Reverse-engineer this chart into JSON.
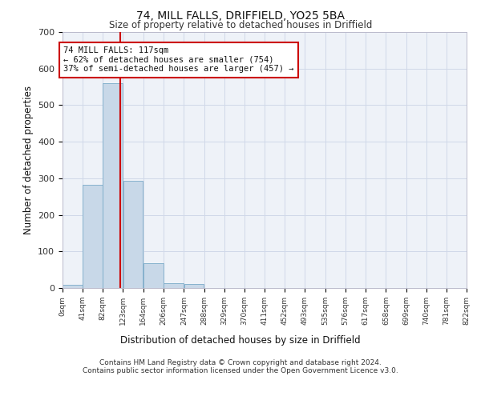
{
  "title1": "74, MILL FALLS, DRIFFIELD, YO25 5BA",
  "title2": "Size of property relative to detached houses in Driffield",
  "xlabel": "Distribution of detached houses by size in Driffield",
  "ylabel": "Number of detached properties",
  "bin_edges": [
    0,
    41,
    82,
    123,
    164,
    206,
    247,
    288,
    329,
    370,
    411,
    452,
    493,
    535,
    576,
    617,
    658,
    699,
    740,
    781,
    822
  ],
  "bar_heights": [
    8,
    283,
    560,
    293,
    68,
    14,
    10,
    0,
    0,
    0,
    0,
    0,
    0,
    0,
    0,
    0,
    0,
    0,
    0,
    0
  ],
  "bar_color": "#c8d8e8",
  "bar_edgecolor": "#7aaac8",
  "property_size": 117,
  "vline_color": "#cc0000",
  "annotation_line1": "74 MILL FALLS: 117sqm",
  "annotation_line2": "← 62% of detached houses are smaller (754)",
  "annotation_line3": "37% of semi-detached houses are larger (457) →",
  "annotation_box_edgecolor": "#cc0000",
  "annotation_box_facecolor": "#ffffff",
  "ylim": [
    0,
    700
  ],
  "yticks": [
    0,
    100,
    200,
    300,
    400,
    500,
    600,
    700
  ],
  "tick_labels": [
    "0sqm",
    "41sqm",
    "82sqm",
    "123sqm",
    "164sqm",
    "206sqm",
    "247sqm",
    "288sqm",
    "329sqm",
    "370sqm",
    "411sqm",
    "452sqm",
    "493sqm",
    "535sqm",
    "576sqm",
    "617sqm",
    "658sqm",
    "699sqm",
    "740sqm",
    "781sqm",
    "822sqm"
  ],
  "footer1": "Contains HM Land Registry data © Crown copyright and database right 2024.",
  "footer2": "Contains public sector information licensed under the Open Government Licence v3.0.",
  "grid_color": "#d0d8e8",
  "bg_color": "#eef2f8"
}
